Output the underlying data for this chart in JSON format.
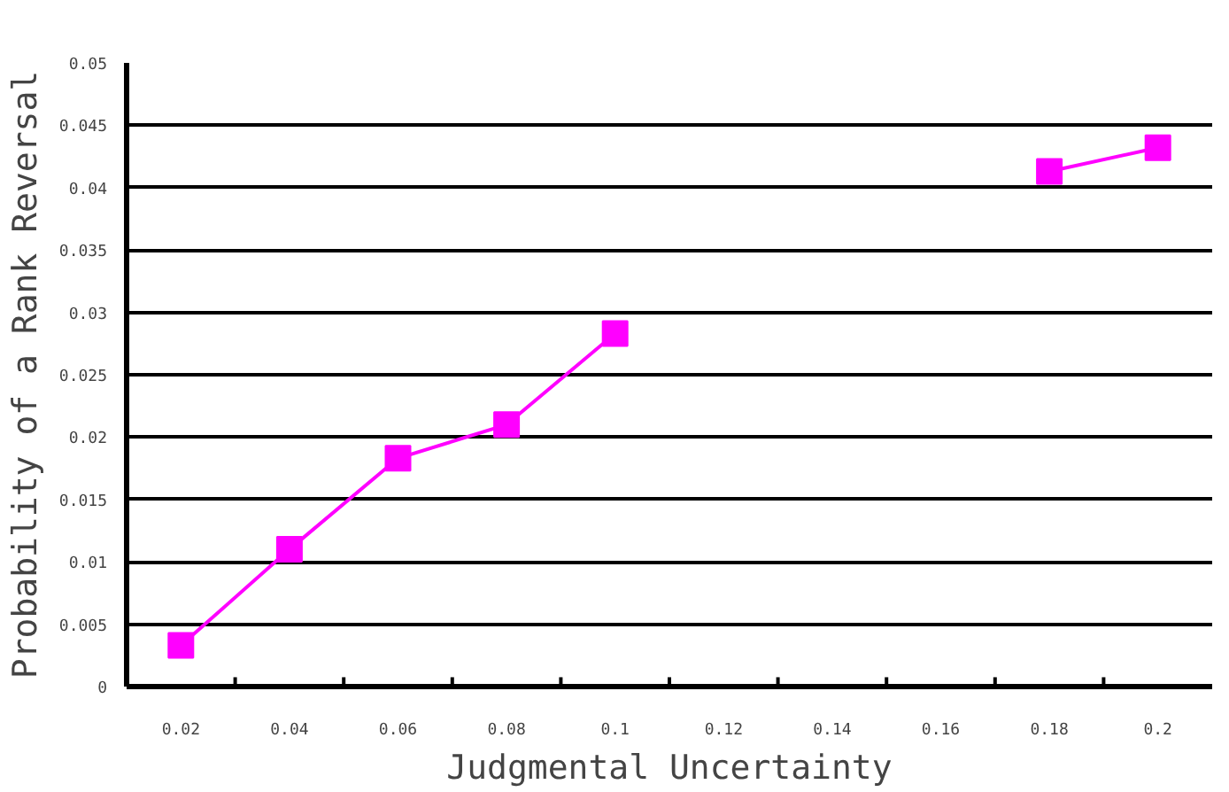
{
  "chart_data": {
    "type": "line",
    "xlabel": "Judgmental Uncertainty",
    "ylabel": "Probability of a Rank Reversal",
    "categories": [
      "0.02",
      "0.04",
      "0.06",
      "0.08",
      "0.1",
      "0.12",
      "0.14",
      "0.16",
      "0.18",
      "0.2"
    ],
    "series": [
      {
        "color": "#ff00ff",
        "values": [
          0.0033,
          0.011,
          0.0183,
          0.021,
          0.0283,
          null,
          null,
          null,
          0.0413,
          0.0432
        ]
      }
    ],
    "ylim": [
      0,
      0.05
    ],
    "yticks": [
      0,
      0.005,
      0.01,
      0.015,
      0.02,
      0.025,
      0.03,
      0.035,
      0.04,
      0.045,
      0.05
    ],
    "grid": "y",
    "marker": "square",
    "line_style": "solid"
  }
}
